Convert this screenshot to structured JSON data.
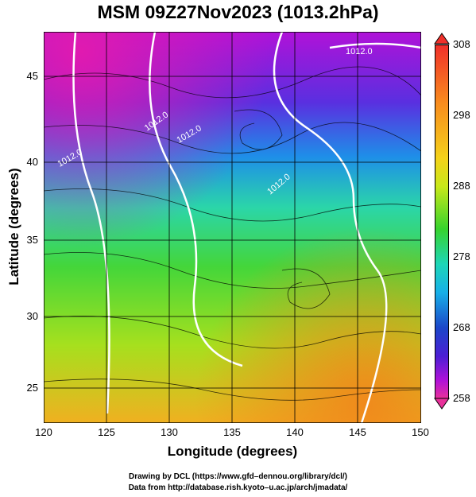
{
  "title": "MSM 09Z27Nov2023 (1013.2hPa)",
  "axes": {
    "xlabel": "Longitude (degrees)",
    "ylabel": "Latitude  (degrees)",
    "xticks": [
      "120",
      "125",
      "130",
      "135",
      "140",
      "145",
      "150"
    ],
    "yticks": [
      "45",
      "40",
      "35",
      "30",
      "25"
    ],
    "xrange": [
      120,
      150
    ],
    "yrange": [
      22.4,
      47.6
    ]
  },
  "colorbar": {
    "ticks": [
      "308",
      "298",
      "288",
      "278",
      "268",
      "258"
    ],
    "range": [
      258,
      308
    ],
    "colors": [
      "#e8309a",
      "#b112d8",
      "#4b1fd4",
      "#1b46c9",
      "#17b0e8",
      "#1dd6b8",
      "#37d32d",
      "#c8e81a",
      "#f4d21a",
      "#f88a1e",
      "#f0302a"
    ]
  },
  "contour_labels": [
    "1012.0",
    "1012.0",
    "1012.0",
    "1012.0",
    "1012.0"
  ],
  "footer": {
    "line1": "Drawing by DCL (https://www.gfd–dennou.org/library/dcl/)",
    "line2": "Data from http://database.rish.kyoto–u.ac.jp/arch/jmadata/"
  }
}
